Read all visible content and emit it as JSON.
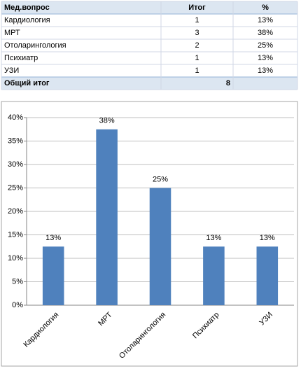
{
  "table": {
    "header": [
      "Мед.вопрос",
      "Итог",
      "%"
    ],
    "rows": [
      [
        "Кардиология",
        "1",
        "13%"
      ],
      [
        "МРТ",
        "3",
        "38%"
      ],
      [
        "Отоларингология",
        "2",
        "25%"
      ],
      [
        "Психиатр",
        "1",
        "13%"
      ],
      [
        "УЗИ",
        "1",
        "13%"
      ]
    ],
    "total": [
      "Общий итог",
      "8"
    ]
  },
  "chart_data": {
    "type": "bar",
    "categories": [
      "Кардиология",
      "МРТ",
      "Отоларингология",
      "Психиатр",
      "УЗИ"
    ],
    "values": [
      12.5,
      37.5,
      25,
      12.5,
      12.5
    ],
    "value_labels": [
      "13%",
      "38%",
      "25%",
      "13%",
      "13%"
    ],
    "color": "#4f81bd",
    "ylim": [
      0,
      40
    ],
    "yticks": [
      {
        "value": 0,
        "label": "0%"
      },
      {
        "value": 5,
        "label": "5%"
      },
      {
        "value": 10,
        "label": "10%"
      },
      {
        "value": 15,
        "label": "15%"
      },
      {
        "value": 20,
        "label": "20%"
      },
      {
        "value": 25,
        "label": "25%"
      },
      {
        "value": 30,
        "label": "30%"
      },
      {
        "value": 35,
        "label": "35%"
      },
      {
        "value": 40,
        "label": "40%"
      }
    ],
    "grid": true
  }
}
